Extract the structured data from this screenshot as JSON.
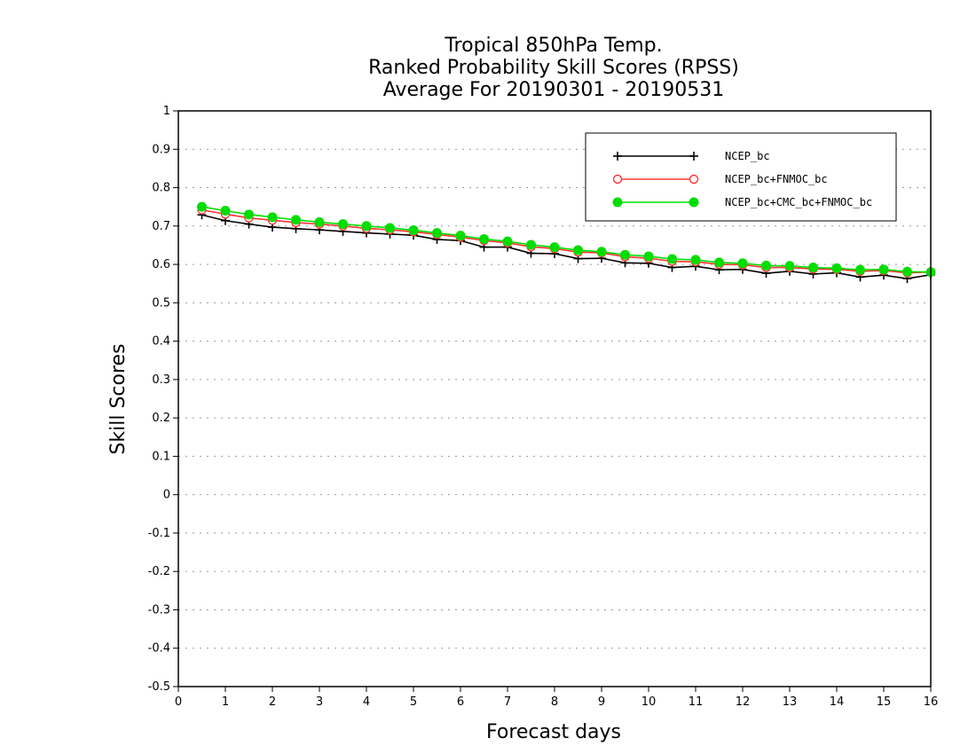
{
  "chart_data": {
    "type": "line",
    "title": [
      "Tropical 850hPa Temp.",
      "Ranked Probability Skill Scores (RPSS)",
      "Average For 20190301 - 20190531"
    ],
    "xlabel": "Forecast days",
    "ylabel": "Skill Scores",
    "xlim": [
      0,
      16
    ],
    "ylim": [
      -0.5,
      1
    ],
    "xticks": [
      "0",
      "1",
      "2",
      "3",
      "4",
      "5",
      "6",
      "7",
      "8",
      "9",
      "10",
      "11",
      "12",
      "13",
      "14",
      "15",
      "16"
    ],
    "yticks": [
      "1",
      "0.9",
      "0.8",
      "0.7",
      "0.6",
      "0.5",
      "0.4",
      "0.3",
      "0.2",
      "0.1",
      "0",
      "-0.1",
      "-0.2",
      "-0.3",
      "-0.4",
      "-0.5"
    ],
    "grid": "horizontal dotted",
    "legend_position": "top-right",
    "x": [
      0.5,
      1,
      1.5,
      2,
      2.5,
      3,
      3.5,
      4,
      4.5,
      5,
      5.5,
      6,
      6.5,
      7,
      7.5,
      8,
      8.5,
      9,
      9.5,
      10,
      10.5,
      11,
      11.5,
      12,
      12.5,
      13,
      13.5,
      14,
      14.5,
      15,
      15.5,
      16
    ],
    "series": [
      {
        "name": "NCEP_bc",
        "color": "#000000",
        "marker": "plus",
        "values": [
          0.729,
          0.714,
          0.705,
          0.697,
          0.693,
          0.69,
          0.686,
          0.682,
          0.679,
          0.676,
          0.665,
          0.662,
          0.645,
          0.645,
          0.629,
          0.628,
          0.615,
          0.616,
          0.604,
          0.603,
          0.592,
          0.595,
          0.586,
          0.587,
          0.577,
          0.582,
          0.575,
          0.578,
          0.567,
          0.572,
          0.563,
          0.573
        ]
      },
      {
        "name": "NCEP_bc+FNMOC_bc",
        "color": "#ff3333",
        "marker": "open-circle",
        "values": [
          0.742,
          0.731,
          0.721,
          0.715,
          0.709,
          0.705,
          0.7,
          0.694,
          0.69,
          0.685,
          0.678,
          0.671,
          0.662,
          0.656,
          0.646,
          0.641,
          0.632,
          0.63,
          0.62,
          0.616,
          0.608,
          0.607,
          0.6,
          0.599,
          0.592,
          0.592,
          0.588,
          0.587,
          0.582,
          0.584,
          0.578,
          0.58
        ]
      },
      {
        "name": "NCEP_bc+CMC_bc+FNMOC_bc",
        "color": "#00dd00",
        "marker": "filled-circle",
        "values": [
          0.75,
          0.74,
          0.73,
          0.723,
          0.716,
          0.71,
          0.705,
          0.7,
          0.695,
          0.689,
          0.682,
          0.675,
          0.666,
          0.66,
          0.651,
          0.645,
          0.637,
          0.633,
          0.625,
          0.621,
          0.614,
          0.612,
          0.605,
          0.603,
          0.597,
          0.596,
          0.592,
          0.59,
          0.586,
          0.587,
          0.581,
          0.58
        ]
      }
    ]
  }
}
